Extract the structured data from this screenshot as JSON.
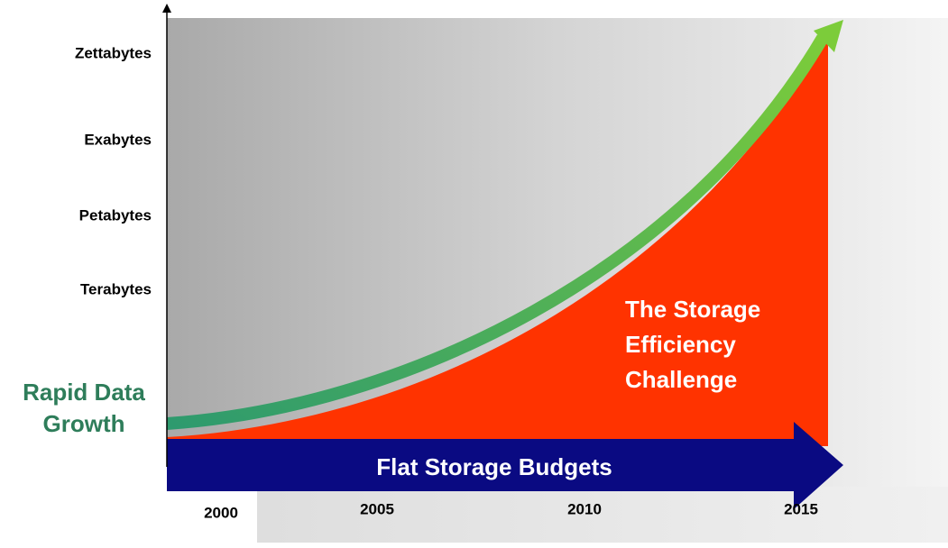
{
  "y_axis_labels": [
    "Zettabytes",
    "Exabytes",
    "Petabytes",
    "Terabytes"
  ],
  "x_axis_labels": [
    "2000",
    "2005",
    "2010",
    "2015"
  ],
  "area_label": [
    "The Storage",
    "Efficiency",
    "Challenge"
  ],
  "growth_label": [
    "Rapid Data",
    "Growth"
  ],
  "budget_label": "Flat Storage Budgets"
}
